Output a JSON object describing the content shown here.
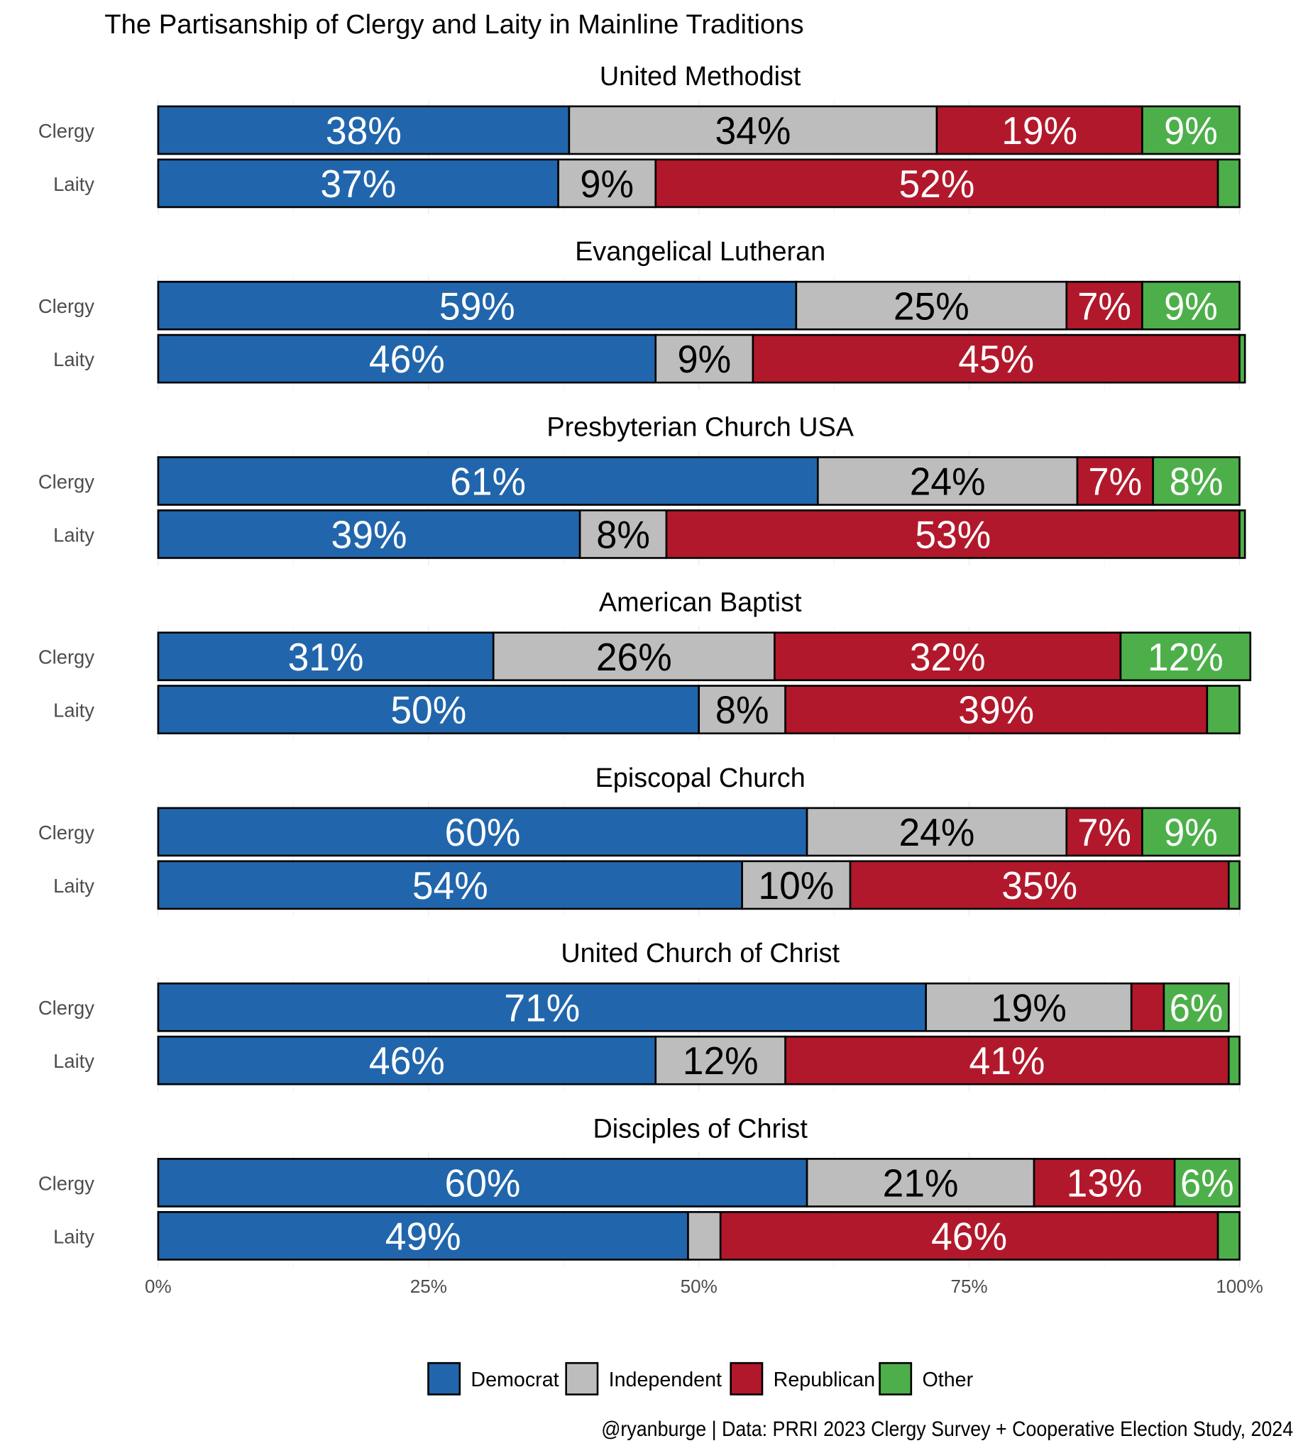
{
  "chart_data": {
    "type": "bar",
    "orientation": "horizontal-stacked-100",
    "title": "The Partisanship of Clergy and Laity in Mainline Traditions",
    "caption": "@ryanburge | Data: PRRI 2023 Clergy Survey + Cooperative Election Study, 2024",
    "xlim": [
      0,
      100
    ],
    "x_ticks": [
      "0%",
      "25%",
      "50%",
      "75%",
      "100%"
    ],
    "x_tick_values": [
      0,
      25,
      50,
      75,
      100
    ],
    "rows": [
      "Clergy",
      "Laity"
    ],
    "series": [
      {
        "name": "Democrat",
        "color": "#2166ac"
      },
      {
        "name": "Independent",
        "color": "#bdbdbd"
      },
      {
        "name": "Republican",
        "color": "#b2182b"
      },
      {
        "name": "Other",
        "color": "#4daf4a"
      }
    ],
    "legend_position": "bottom",
    "panels": [
      {
        "name": "United Methodist",
        "Clergy": [
          38,
          34,
          19,
          9
        ],
        "Laity": [
          37,
          9,
          52,
          2
        ]
      },
      {
        "name": "Evangelical Lutheran",
        "Clergy": [
          59,
          25,
          7,
          9
        ],
        "Laity": [
          46,
          9,
          45,
          0.5
        ]
      },
      {
        "name": "Presbyterian Church USA",
        "Clergy": [
          61,
          24,
          7,
          8
        ],
        "Laity": [
          39,
          8,
          53,
          0.5
        ]
      },
      {
        "name": "American Baptist",
        "Clergy": [
          31,
          26,
          32,
          12
        ],
        "Laity": [
          50,
          8,
          39,
          3
        ]
      },
      {
        "name": "Episcopal Church",
        "Clergy": [
          60,
          24,
          7,
          9
        ],
        "Laity": [
          54,
          10,
          35,
          1
        ]
      },
      {
        "name": "United Church of Christ",
        "Clergy": [
          71,
          19,
          3,
          6
        ],
        "Laity": [
          46,
          12,
          41,
          1
        ]
      },
      {
        "name": "Disciples of Christ",
        "Clergy": [
          60,
          21,
          13,
          6
        ],
        "Laity": [
          49,
          3,
          46,
          2
        ]
      }
    ],
    "label_min": 6
  }
}
